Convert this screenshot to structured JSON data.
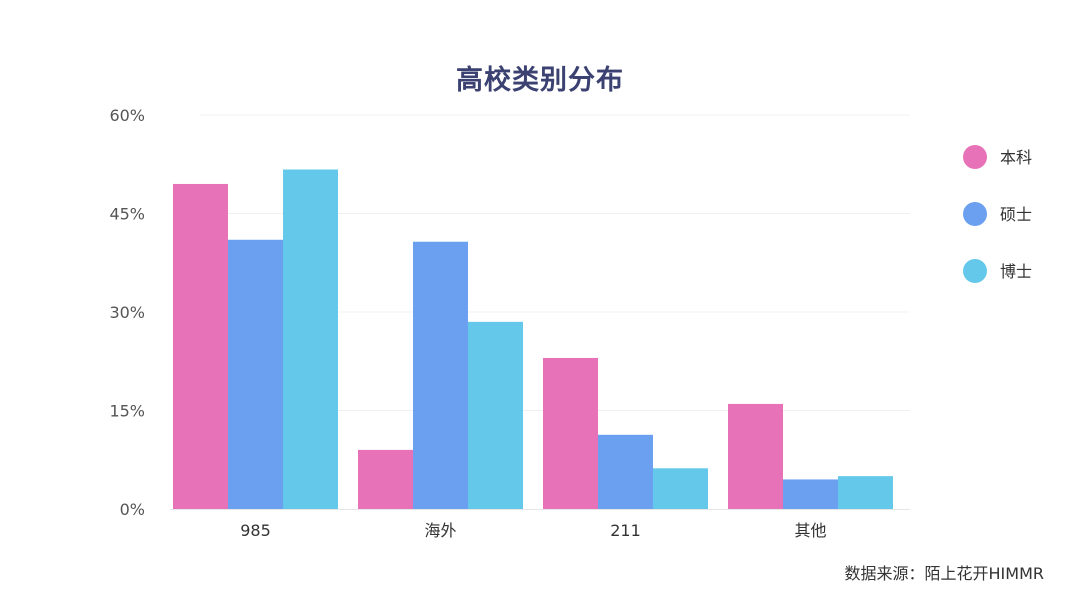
{
  "chart_data": {
    "type": "bar",
    "title": "高校类别分布",
    "categories": [
      "985",
      "海外",
      "211",
      "其他"
    ],
    "series": [
      {
        "name": "本科",
        "color": "#e872b7",
        "values": [
          49.5,
          9,
          23,
          16
        ]
      },
      {
        "name": "硕士",
        "color": "#6aa0ef",
        "values": [
          41,
          40.7,
          11.3,
          4.5
        ]
      },
      {
        "name": "博士",
        "color": "#63c8ea",
        "values": [
          51.7,
          28.5,
          6.2,
          5
        ]
      }
    ],
    "y_ticks": [
      "0%",
      "15%",
      "30%",
      "45%",
      "60%"
    ],
    "ylim": [
      0,
      60
    ],
    "xlabel": "",
    "ylabel": "",
    "grid": true,
    "legend_position": "right"
  },
  "source_text": "数据来源：陌上花开HIMMR"
}
